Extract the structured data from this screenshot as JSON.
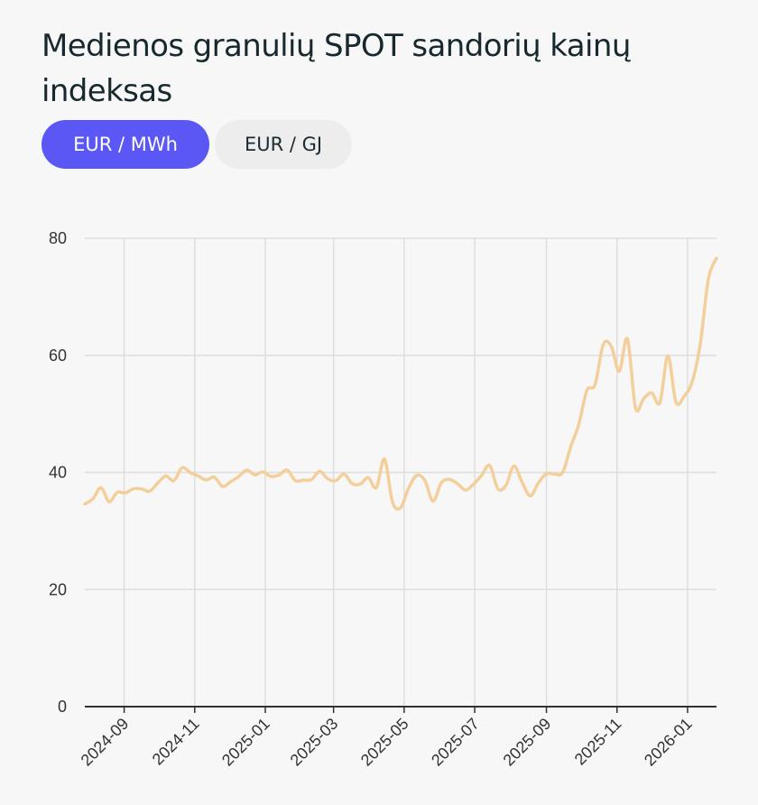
{
  "title": "Medienos granulių SPOT sandorių kainų indeksas",
  "toggles": {
    "active_label": "EUR / MWh",
    "inactive_label": "EUR / GJ"
  },
  "colors": {
    "accent": "#5a57f5",
    "line": "#f2cf9b",
    "grid": "#dedede",
    "axis": "#333333"
  },
  "chart_data": {
    "type": "line",
    "ylim": [
      0,
      80
    ],
    "yticks": [
      0,
      20,
      40,
      60,
      80
    ],
    "xticks": [
      "2024-09",
      "2024-11",
      "2025-01",
      "2025-03",
      "2025-05",
      "2025-07",
      "2025-09",
      "2025-11",
      "2026-01"
    ],
    "xlim": [
      "2024-07-29",
      "2026-01-26"
    ],
    "grid": true,
    "series": [
      {
        "points": [
          [
            "2024-07-29",
            34.6
          ],
          [
            "2024-08-05",
            35.5
          ],
          [
            "2024-08-12",
            37.4
          ],
          [
            "2024-08-19",
            35.0
          ],
          [
            "2024-08-26",
            36.6
          ],
          [
            "2024-09-02",
            36.5
          ],
          [
            "2024-09-09",
            37.2
          ],
          [
            "2024-09-16",
            37.2
          ],
          [
            "2024-09-23",
            36.8
          ],
          [
            "2024-09-30",
            38.2
          ],
          [
            "2024-10-07",
            39.4
          ],
          [
            "2024-10-14",
            38.6
          ],
          [
            "2024-10-21",
            40.8
          ],
          [
            "2024-10-28",
            40.0
          ],
          [
            "2024-11-04",
            39.4
          ],
          [
            "2024-11-11",
            38.7
          ],
          [
            "2024-11-18",
            39.2
          ],
          [
            "2024-11-25",
            37.6
          ],
          [
            "2024-12-02",
            38.4
          ],
          [
            "2024-12-09",
            39.3
          ],
          [
            "2024-12-16",
            40.4
          ],
          [
            "2024-12-23",
            39.6
          ],
          [
            "2024-12-30",
            40.1
          ],
          [
            "2025-01-06",
            39.3
          ],
          [
            "2025-01-13",
            39.6
          ],
          [
            "2025-01-20",
            40.4
          ],
          [
            "2025-01-27",
            38.6
          ],
          [
            "2025-02-03",
            38.7
          ],
          [
            "2025-02-10",
            38.8
          ],
          [
            "2025-02-17",
            40.2
          ],
          [
            "2025-02-24",
            38.9
          ],
          [
            "2025-03-03",
            38.6
          ],
          [
            "2025-03-10",
            39.7
          ],
          [
            "2025-03-17",
            38.1
          ],
          [
            "2025-03-24",
            38.0
          ],
          [
            "2025-03-31",
            39.1
          ],
          [
            "2025-04-07",
            37.4
          ],
          [
            "2025-04-14",
            42.3
          ],
          [
            "2025-04-21",
            34.9
          ],
          [
            "2025-04-28",
            34.0
          ],
          [
            "2025-05-05",
            37.4
          ],
          [
            "2025-05-12",
            39.5
          ],
          [
            "2025-05-19",
            38.6
          ],
          [
            "2025-05-26",
            35.1
          ],
          [
            "2025-06-02",
            38.2
          ],
          [
            "2025-06-09",
            38.8
          ],
          [
            "2025-06-16",
            38.1
          ],
          [
            "2025-06-23",
            37.0
          ],
          [
            "2025-06-30",
            38.0
          ],
          [
            "2025-07-07",
            39.5
          ],
          [
            "2025-07-14",
            41.2
          ],
          [
            "2025-07-21",
            37.2
          ],
          [
            "2025-07-28",
            37.8
          ],
          [
            "2025-08-04",
            41.1
          ],
          [
            "2025-08-11",
            38.3
          ],
          [
            "2025-08-18",
            36.0
          ],
          [
            "2025-08-25",
            38.2
          ],
          [
            "2025-09-01",
            39.8
          ],
          [
            "2025-09-08",
            39.7
          ],
          [
            "2025-09-15",
            40.0
          ],
          [
            "2025-09-22",
            44.4
          ],
          [
            "2025-09-29",
            48.2
          ],
          [
            "2025-10-06",
            54.0
          ],
          [
            "2025-10-13",
            55.0
          ],
          [
            "2025-10-20",
            61.8
          ],
          [
            "2025-10-27",
            61.6
          ],
          [
            "2025-11-03",
            57.3
          ],
          [
            "2025-11-10",
            62.8
          ],
          [
            "2025-11-17",
            51.0
          ],
          [
            "2025-11-24",
            52.6
          ],
          [
            "2025-12-01",
            53.6
          ],
          [
            "2025-12-08",
            51.9
          ],
          [
            "2025-12-15",
            59.9
          ],
          [
            "2025-12-22",
            52.0
          ],
          [
            "2025-12-29",
            53.0
          ],
          [
            "2026-01-05",
            55.5
          ],
          [
            "2026-01-12",
            62.0
          ],
          [
            "2026-01-19",
            73.0
          ],
          [
            "2026-01-26",
            76.6
          ]
        ]
      }
    ]
  }
}
